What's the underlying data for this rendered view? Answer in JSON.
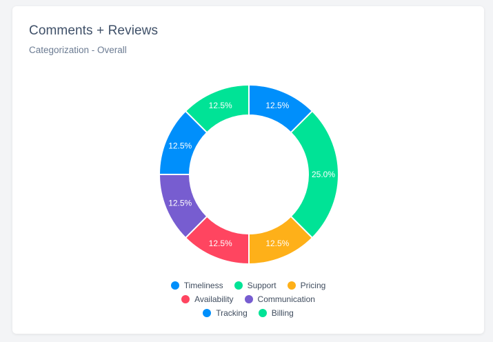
{
  "card": {
    "title": "Comments + Reviews",
    "subtitle": "Categorization - Overall"
  },
  "chart_data": {
    "type": "pie",
    "donut": true,
    "title": "Comments + Reviews",
    "subtitle": "Categorization - Overall",
    "legend_position": "bottom",
    "slices": [
      {
        "name": "Timeliness",
        "value": 12.5,
        "label": "12.5%",
        "color": "#008ffb"
      },
      {
        "name": "Support",
        "value": 25.0,
        "label": "25.0%",
        "color": "#00e396"
      },
      {
        "name": "Pricing",
        "value": 12.5,
        "label": "12.5%",
        "color": "#feb019"
      },
      {
        "name": "Availability",
        "value": 12.5,
        "label": "12.5%",
        "color": "#ff4560"
      },
      {
        "name": "Communication",
        "value": 12.5,
        "label": "12.5%",
        "color": "#775dd0"
      },
      {
        "name": "Tracking",
        "value": 12.5,
        "label": "12.5%",
        "color": "#008ffb"
      },
      {
        "name": "Billing",
        "value": 12.5,
        "label": "12.5%",
        "color": "#00e396"
      }
    ]
  }
}
